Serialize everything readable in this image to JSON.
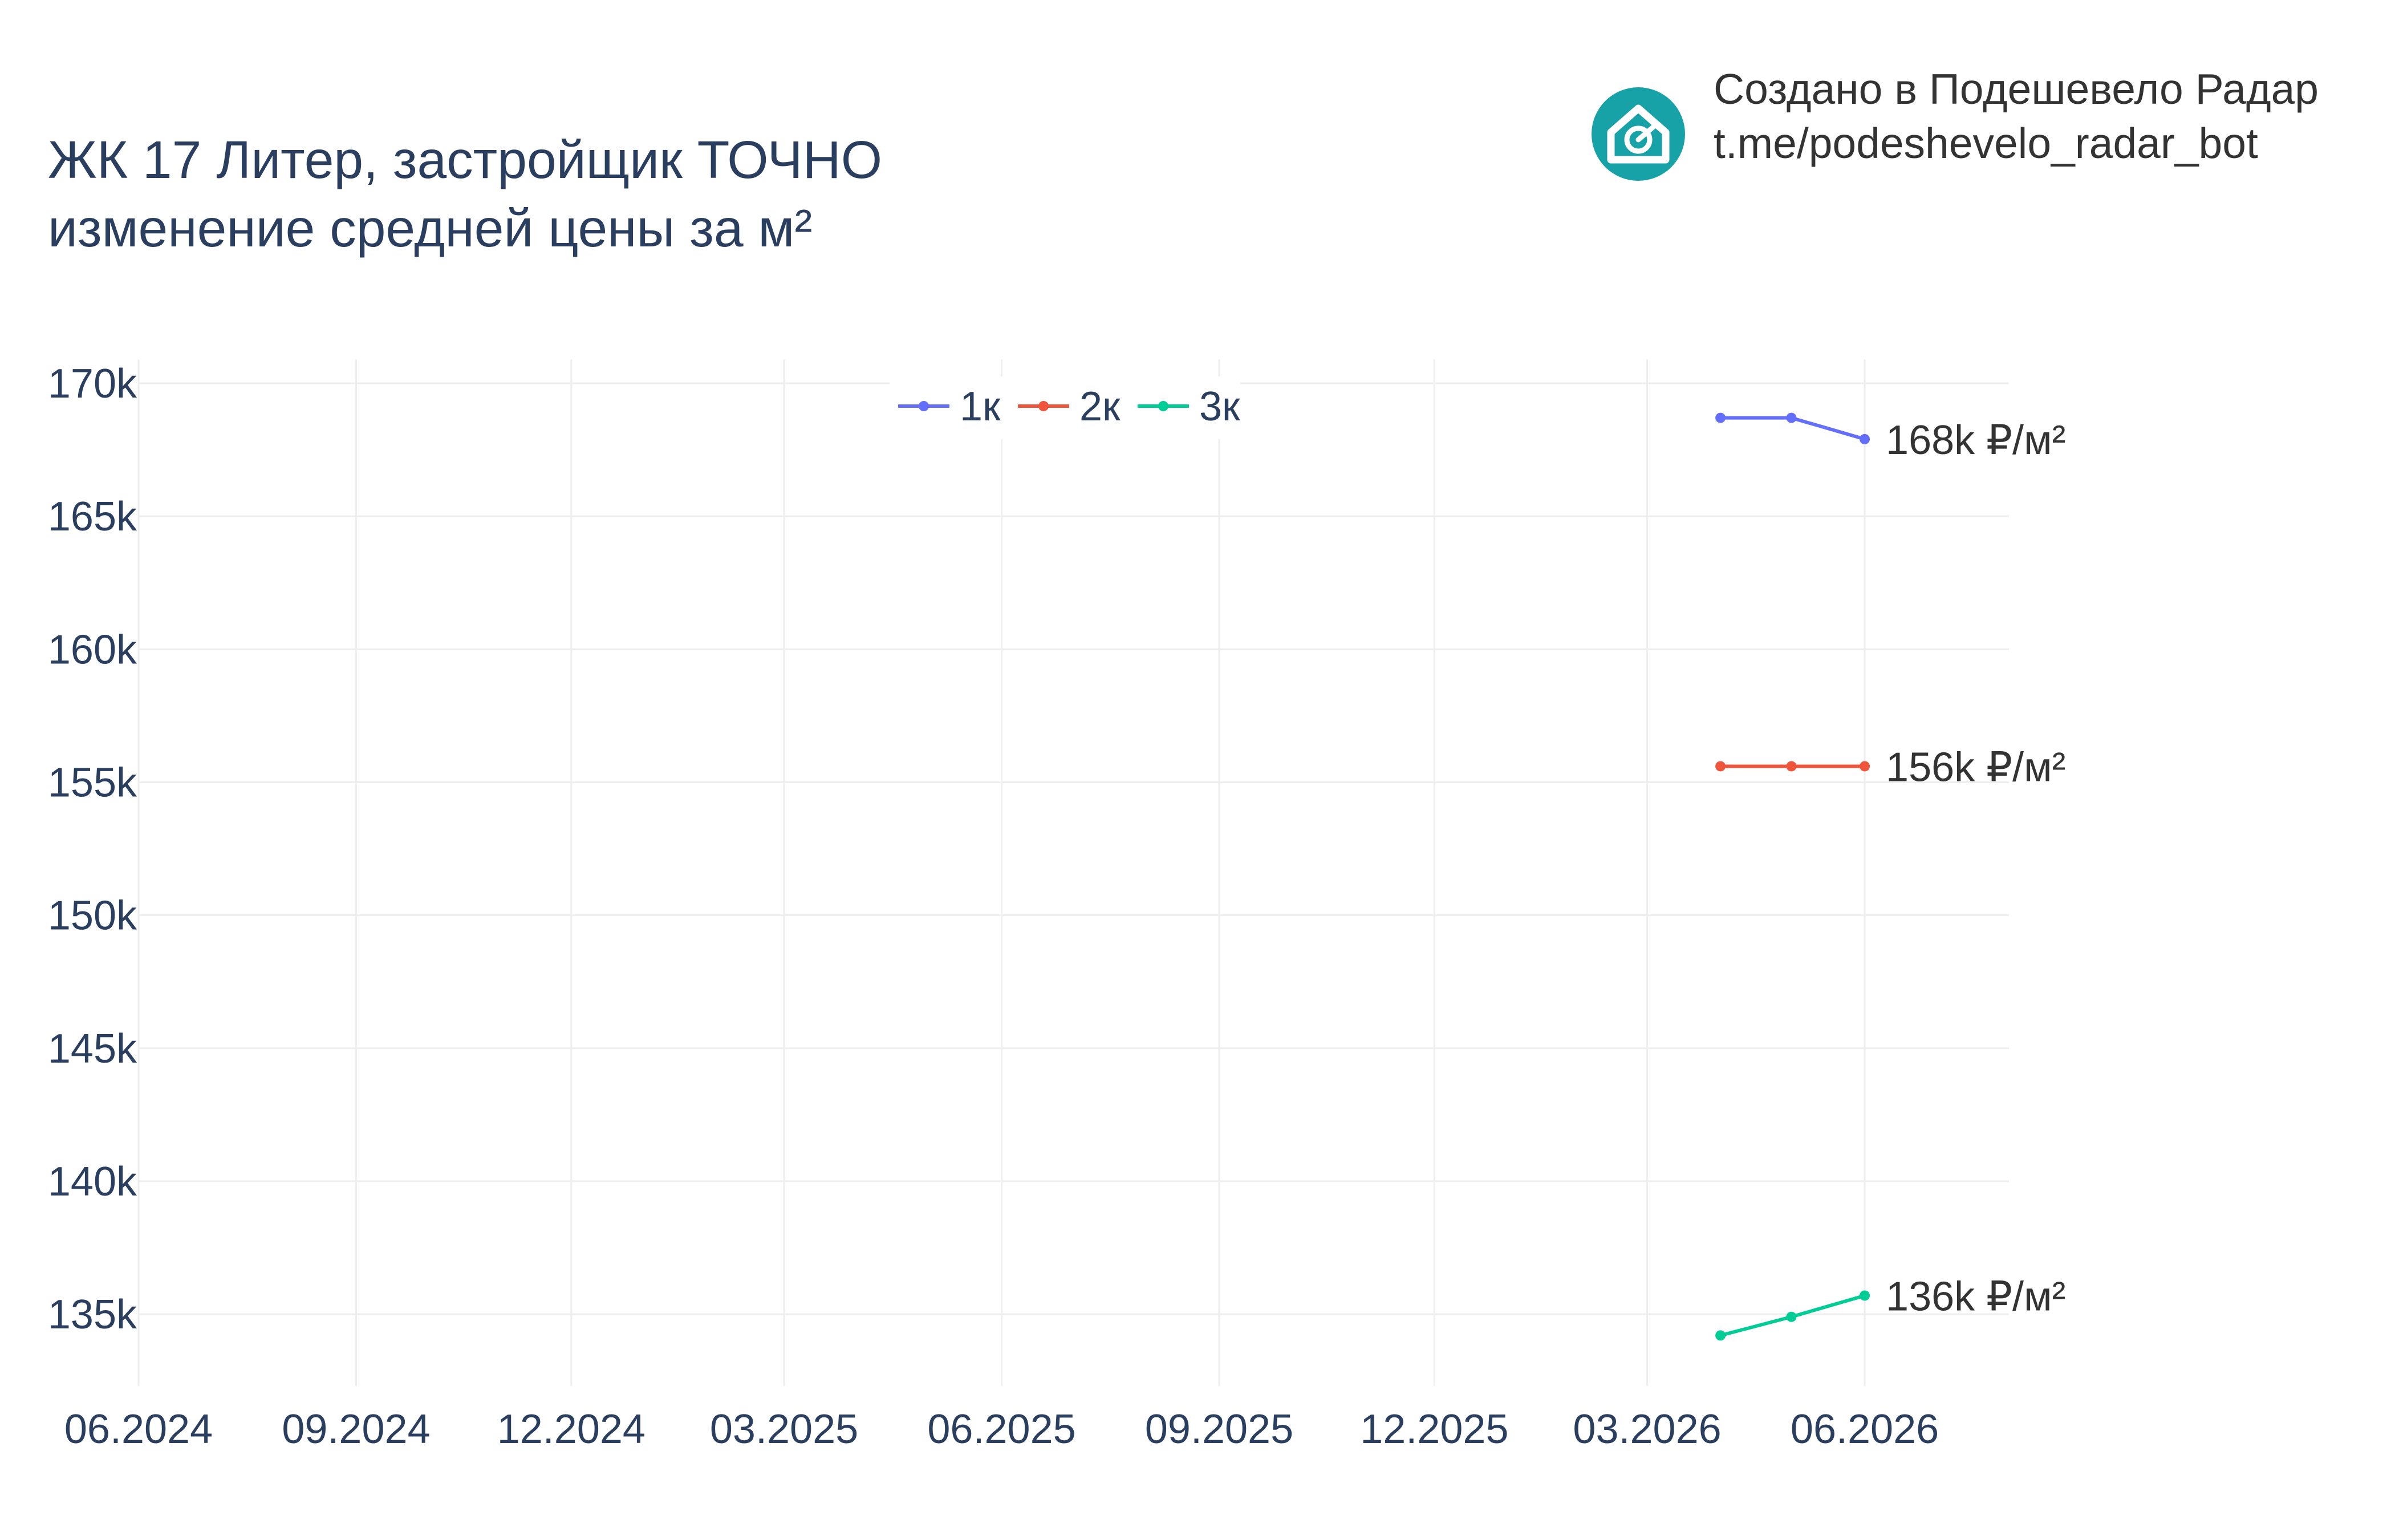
{
  "title": {
    "line1": "ЖК 17 Литер, застройщик ТОЧНО",
    "line2": "изменение средней цены за м²"
  },
  "credit": {
    "line1": "Создано в Подешевело Радар",
    "line2": "t.me/podeshevelo_radar_bot",
    "logo_icon": "house-radar-icon",
    "logo_color": "#17a2a8"
  },
  "chart_data": {
    "type": "line",
    "title": "ЖК 17 Литер, застройщик ТОЧНО изменение средней цены за м²",
    "xlabel": "",
    "ylabel": "",
    "x_ticks": [
      "06.2024",
      "09.2024",
      "12.2024",
      "03.2025",
      "06.2025",
      "09.2025",
      "12.2025",
      "03.2026",
      "06.2026"
    ],
    "x_range": [
      "2024-06-01",
      "2026-08-01"
    ],
    "y_ticks": [
      "135k",
      "140k",
      "145k",
      "150k",
      "155k",
      "160k",
      "165k",
      "170k"
    ],
    "y_tick_values": [
      135000,
      140000,
      145000,
      150000,
      155000,
      160000,
      165000,
      170000
    ],
    "ylim": [
      132300,
      170900
    ],
    "grid": true,
    "legend_placement": "top-center",
    "x": [
      "2026-04-01",
      "2026-05-01",
      "2026-06-01"
    ],
    "series": [
      {
        "name": "1к",
        "color": "#636efa",
        "values": [
          168700,
          168700,
          167900
        ],
        "end_label": "168k ₽/м²"
      },
      {
        "name": "2к",
        "color": "#ef553b",
        "values": [
          155600,
          155600,
          155600
        ],
        "end_label": "156k ₽/м²"
      },
      {
        "name": "3к",
        "color": "#00cc96",
        "values": [
          134200,
          134900,
          135700
        ],
        "end_label": "136k ₽/м²"
      }
    ]
  }
}
